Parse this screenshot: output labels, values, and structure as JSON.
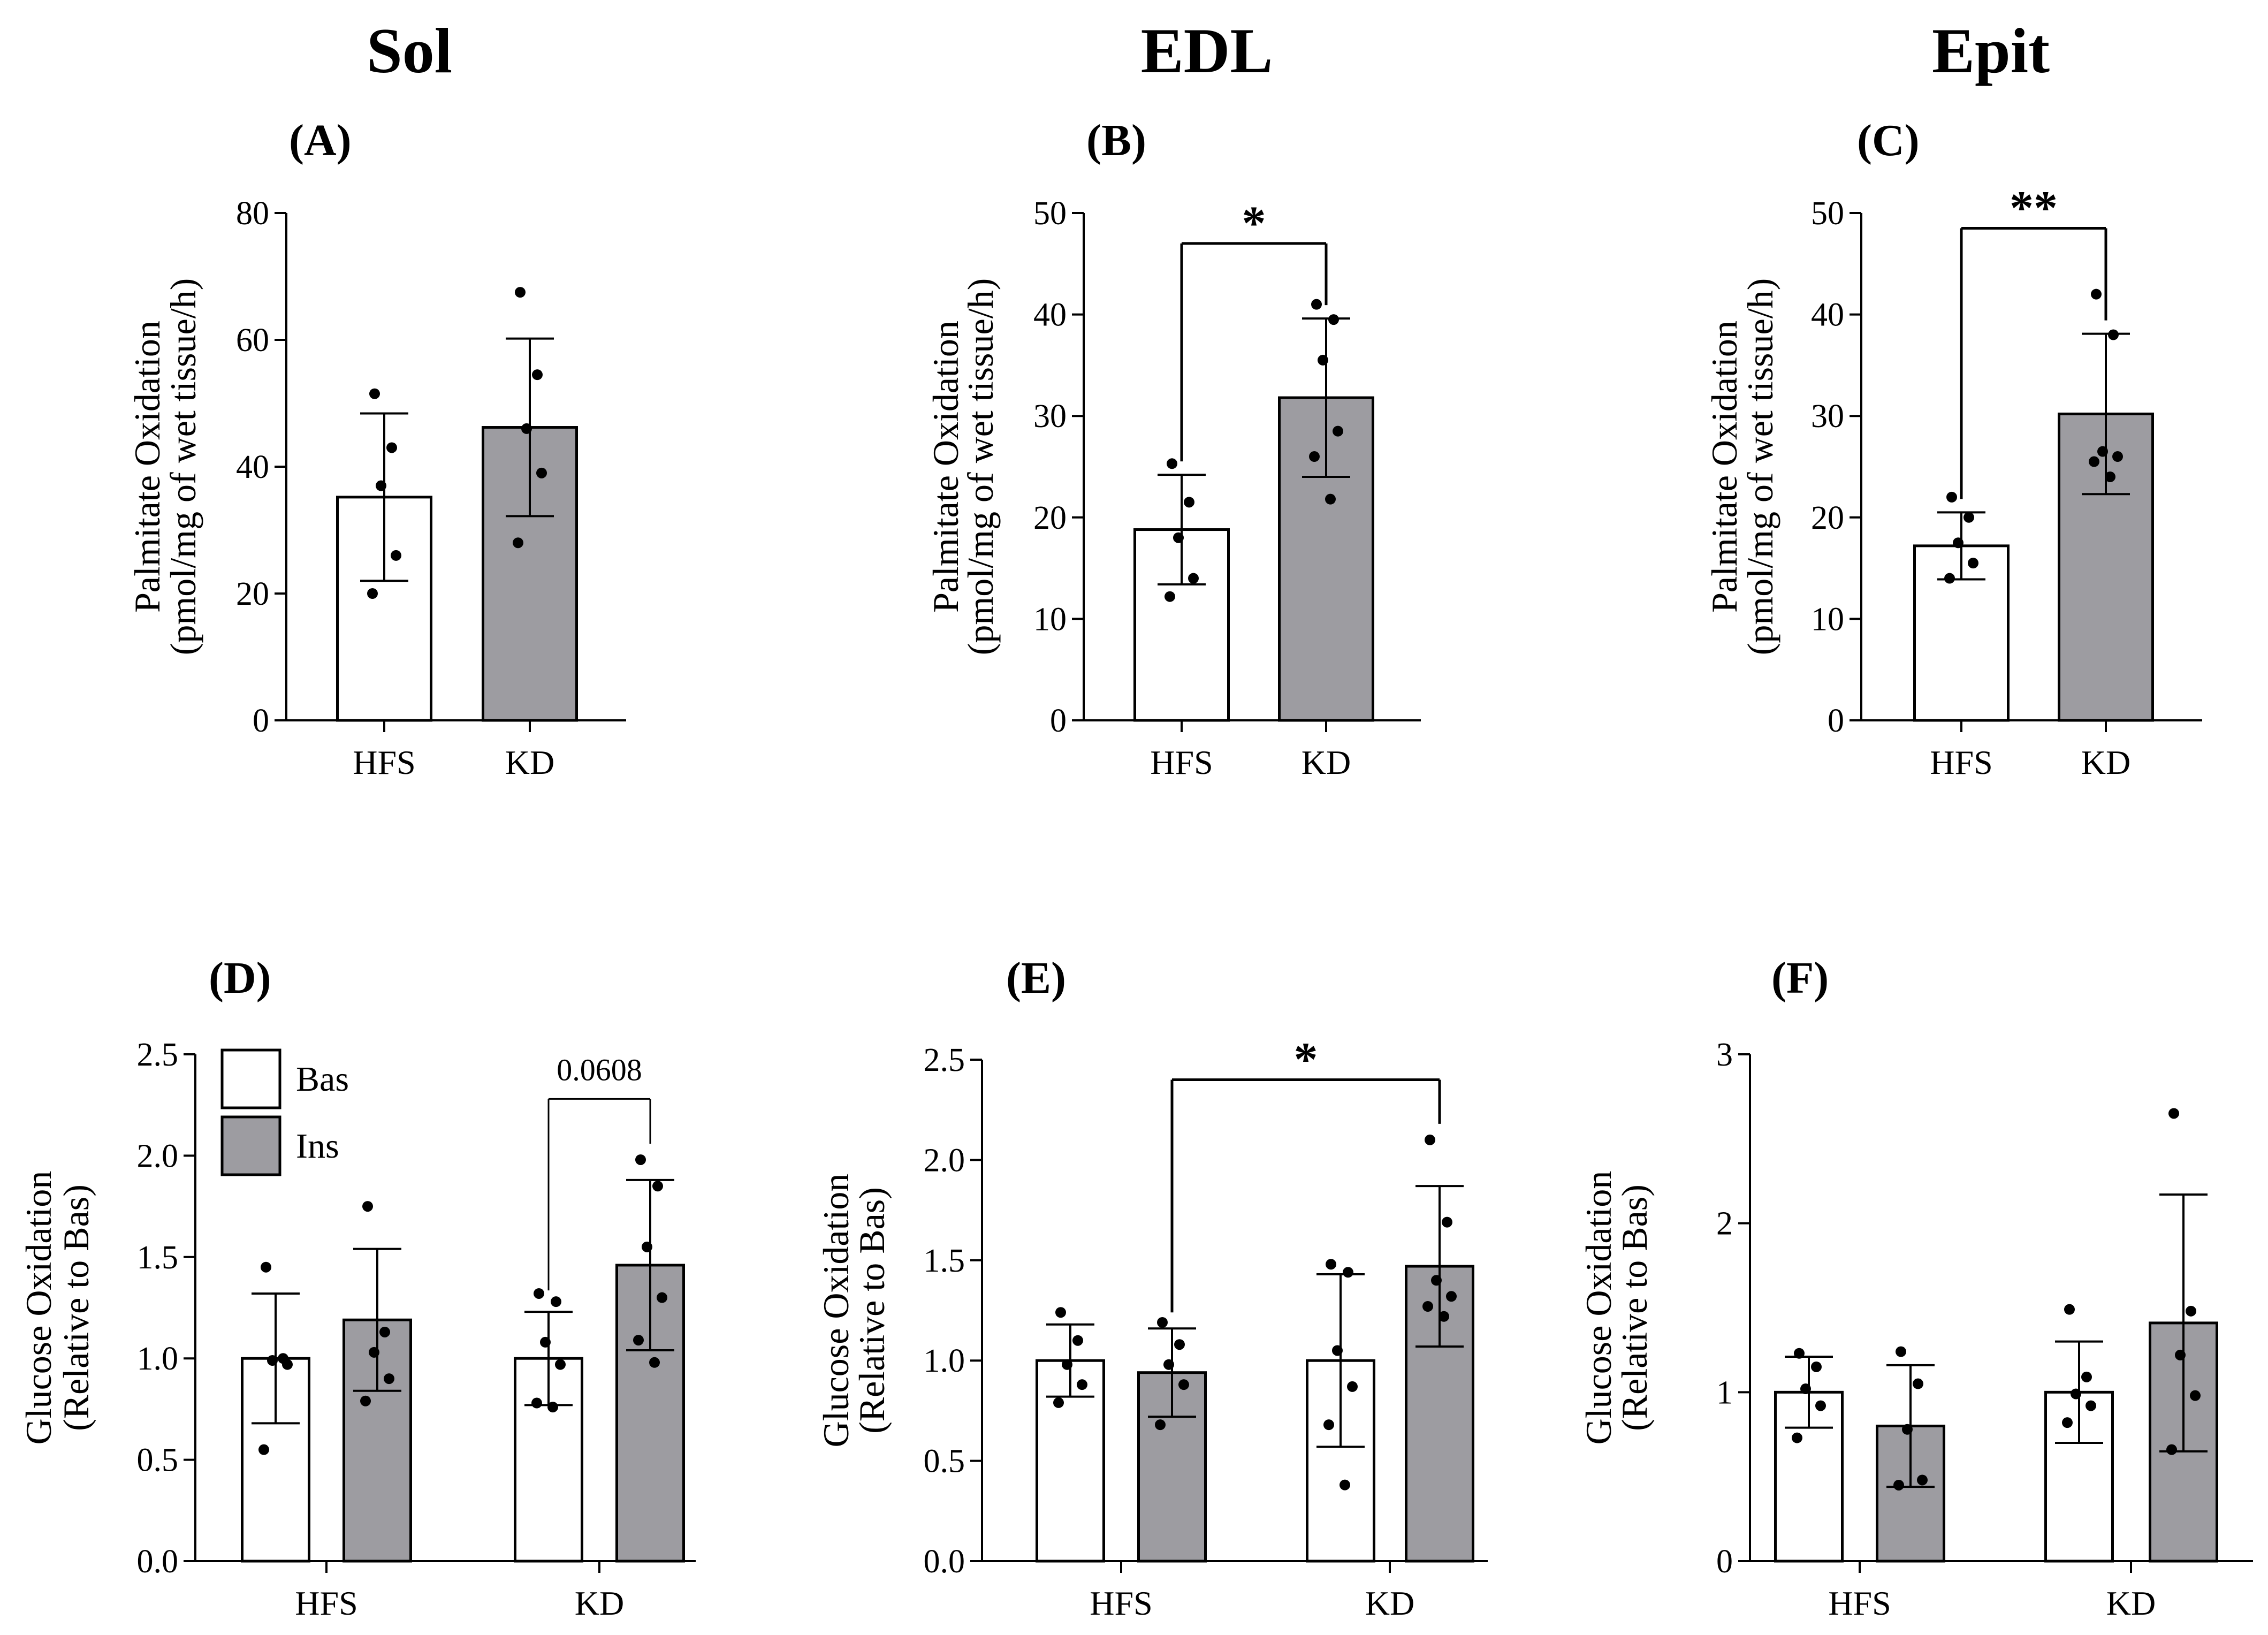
{
  "column_titles": [
    "Sol",
    "EDL",
    "Epit"
  ],
  "legend": [
    {
      "label": "Bas",
      "color": "#ffffff"
    },
    {
      "label": "Ins",
      "color": "#9d9ca1"
    }
  ],
  "colors": {
    "bas": "#ffffff",
    "ins": "#9d9ca1",
    "axis": "#000000"
  },
  "chart_data": [
    {
      "type": "bar",
      "panel": "(A)",
      "muscle": "Sol",
      "ylabel": "Palmitate Oxidation",
      "ylabel2": "(pmol/mg of wet tissue/h)",
      "categories": [
        "HFS",
        "KD"
      ],
      "ylim": [
        0,
        80
      ],
      "yticks": [
        0,
        20,
        40,
        60,
        80
      ],
      "series": [
        {
          "name": "Palmitate oxidation",
          "values": [
            35.2,
            46.2
          ],
          "errors": [
            13.2,
            14.0
          ],
          "colors": [
            "#ffffff",
            "#9d9ca1"
          ],
          "points": [
            [
              51.5,
              43.0,
              37.0,
              26.0,
              20.0
            ],
            [
              67.5,
              54.5,
              46.0,
              39.0,
              28.0
            ]
          ]
        }
      ],
      "annotations": []
    },
    {
      "type": "bar",
      "panel": "(B)",
      "muscle": "EDL",
      "ylabel": "Palmitate Oxidation",
      "ylabel2": "(pmol/mg of wet tissue/h)",
      "categories": [
        "HFS",
        "KD"
      ],
      "ylim": [
        0,
        50
      ],
      "yticks": [
        0,
        10,
        20,
        30,
        40,
        50
      ],
      "series": [
        {
          "name": "Palmitate oxidation",
          "values": [
            18.8,
            31.8
          ],
          "errors": [
            5.4,
            7.8
          ],
          "colors": [
            "#ffffff",
            "#9d9ca1"
          ],
          "points": [
            [
              25.3,
              21.5,
              18.0,
              14.0,
              12.2
            ],
            [
              41.0,
              39.5,
              35.5,
              28.5,
              26.0,
              21.8
            ]
          ]
        }
      ],
      "annotations": [
        {
          "text": "*",
          "from": 0,
          "to": 1,
          "y": 47.0
        }
      ]
    },
    {
      "type": "bar",
      "panel": "(C)",
      "muscle": "Epit",
      "ylabel": "Palmitate Oxidation",
      "ylabel2": "(pmol/mg of wet tissue/h)",
      "categories": [
        "HFS",
        "KD"
      ],
      "ylim": [
        0,
        50
      ],
      "yticks": [
        0,
        10,
        20,
        30,
        40,
        50
      ],
      "series": [
        {
          "name": "Palmitate oxidation",
          "values": [
            17.2,
            30.2
          ],
          "errors": [
            3.3,
            7.9
          ],
          "colors": [
            "#ffffff",
            "#9d9ca1"
          ],
          "points": [
            [
              22.0,
              20.0,
              17.5,
              15.5,
              14.0
            ],
            [
              42.0,
              38.0,
              26.5,
              26.0,
              25.5,
              24.0
            ]
          ]
        }
      ],
      "annotations": [
        {
          "text": "**",
          "from": 0,
          "to": 1,
          "y": 48.5
        }
      ]
    },
    {
      "type": "bar",
      "panel": "(D)",
      "muscle": "Sol",
      "ylabel": "Glucose Oxidation",
      "ylabel2": "(Relative to Bas)",
      "categories": [
        "HFS",
        "KD"
      ],
      "ylim": [
        0,
        2.5
      ],
      "yticks": [
        0,
        0.5,
        1.0,
        1.5,
        2.0,
        2.5
      ],
      "yticklabels": [
        "0.0",
        "0.5",
        "1.0",
        "1.5",
        "2.0",
        "2.5"
      ],
      "series": [
        {
          "name": "Bas",
          "values": [
            1.0,
            1.0
          ],
          "errors": [
            0.32,
            0.23
          ],
          "points": [
            [
              1.45,
              1.0,
              0.99,
              0.97,
              0.55
            ],
            [
              1.32,
              1.28,
              1.08,
              0.97,
              0.78,
              0.76
            ]
          ]
        },
        {
          "name": "Ins",
          "values": [
            1.19,
            1.46
          ],
          "errors": [
            0.35,
            0.42
          ],
          "points": [
            [
              1.75,
              1.13,
              1.03,
              0.9,
              0.79
            ],
            [
              1.98,
              1.85,
              1.55,
              1.3,
              1.09,
              0.98
            ]
          ]
        }
      ],
      "annotations": [
        {
          "text": "0.0608",
          "group": 1,
          "from_series": 0,
          "to_series": 1,
          "y": 2.28,
          "style": "p"
        }
      ]
    },
    {
      "type": "bar",
      "panel": "(E)",
      "muscle": "EDL",
      "ylabel": "Glucose Oxidation",
      "ylabel2": "(Relative to Bas)",
      "categories": [
        "HFS",
        "KD"
      ],
      "ylim": [
        0,
        2.5
      ],
      "yticks": [
        0,
        0.5,
        1.0,
        1.5,
        2.0,
        2.5
      ],
      "yticklabels": [
        "0.0",
        "0.5",
        "1.0",
        "1.5",
        "2.0",
        "2.5"
      ],
      "series": [
        {
          "name": "Bas",
          "values": [
            1.0,
            1.0
          ],
          "errors": [
            0.18,
            0.43
          ],
          "points": [
            [
              1.24,
              1.1,
              0.98,
              0.88,
              0.79
            ],
            [
              1.48,
              1.44,
              1.05,
              0.87,
              0.68,
              0.38
            ]
          ]
        },
        {
          "name": "Ins",
          "values": [
            0.94,
            1.47
          ],
          "errors": [
            0.22,
            0.4
          ],
          "points": [
            [
              1.19,
              1.08,
              0.98,
              0.88,
              0.68
            ],
            [
              2.1,
              1.69,
              1.4,
              1.32,
              1.27,
              1.22
            ]
          ]
        }
      ],
      "annotations": [
        {
          "text": "*",
          "from_group": 0,
          "from_series": 1,
          "to_group": 1,
          "to_series": 1,
          "y": 2.4,
          "style": "star"
        }
      ]
    },
    {
      "type": "bar",
      "panel": "(F)",
      "muscle": "Epit",
      "ylabel": "Glucose Oxidation",
      "ylabel2": "(Relative to Bas)",
      "categories": [
        "HFS",
        "KD"
      ],
      "ylim": [
        0,
        3
      ],
      "yticks": [
        0,
        1,
        2,
        3
      ],
      "yticklabels": [
        "0",
        "1",
        "2",
        "3"
      ],
      "series": [
        {
          "name": "Bas",
          "values": [
            1.0,
            1.0
          ],
          "errors": [
            0.21,
            0.3
          ],
          "points": [
            [
              1.23,
              1.15,
              1.02,
              0.92,
              0.73
            ],
            [
              1.49,
              1.09,
              0.99,
              0.92,
              0.82
            ]
          ]
        },
        {
          "name": "Ins",
          "values": [
            0.8,
            1.41
          ],
          "errors": [
            0.36,
            0.76
          ],
          "points": [
            [
              1.24,
              1.05,
              0.78,
              0.48,
              0.45
            ],
            [
              2.65,
              1.48,
              1.22,
              0.98,
              0.66
            ]
          ]
        }
      ],
      "annotations": []
    }
  ]
}
